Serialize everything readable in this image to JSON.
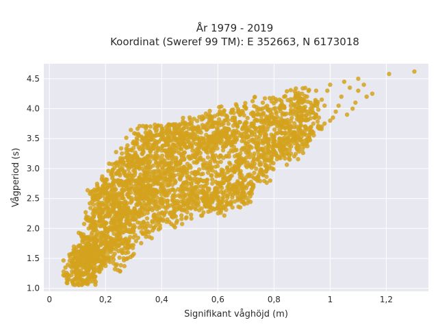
{
  "chart_data": {
    "type": "scatter",
    "title_lines": [
      "År 1979 - 2019",
      "Koordinat (Sweref 99 TM): E 352663, N 6173018"
    ],
    "xlabel": "Signifikant våghöjd (m)",
    "ylabel": "Vågperiod (s)",
    "xlim": [
      -0.02,
      1.35
    ],
    "ylim": [
      0.95,
      4.75
    ],
    "x_ticks": [
      0,
      0.2,
      0.4,
      0.6,
      0.8,
      1.0,
      1.2
    ],
    "x_tick_labels": [
      "0",
      "0,2",
      "0,4",
      "0,6",
      "0,8",
      "1",
      "1,2"
    ],
    "y_ticks": [
      1.0,
      1.5,
      2.0,
      2.5,
      3.0,
      3.5,
      4.0,
      4.5
    ],
    "y_tick_labels": [
      "1.0",
      "1.5",
      "2.0",
      "2.5",
      "3.0",
      "3.5",
      "4.0",
      "4.5"
    ],
    "grid": true,
    "colors": {
      "points": "#d4a21c",
      "plot_bg": "#e8e8f0",
      "grid": "#ffffff"
    },
    "points": [
      [
        0.05,
        1.22
      ],
      [
        0.07,
        1.2
      ],
      [
        0.09,
        1.15
      ],
      [
        0.11,
        1.1
      ],
      [
        0.13,
        1.08
      ],
      [
        0.08,
        1.35
      ],
      [
        0.1,
        1.45
      ],
      [
        0.12,
        1.55
      ],
      [
        0.11,
        1.7
      ],
      [
        0.13,
        1.85
      ],
      [
        0.14,
        2.0
      ],
      [
        0.15,
        2.15
      ],
      [
        0.16,
        2.3
      ],
      [
        0.17,
        2.5
      ],
      [
        0.18,
        2.6
      ],
      [
        0.2,
        2.75
      ],
      [
        0.22,
        2.9
      ],
      [
        0.24,
        3.05
      ],
      [
        0.26,
        3.15
      ],
      [
        0.28,
        3.3
      ],
      [
        0.3,
        3.45
      ],
      [
        0.32,
        3.55
      ],
      [
        0.36,
        3.6
      ],
      [
        0.38,
        3.62
      ],
      [
        0.42,
        3.65
      ],
      [
        0.46,
        3.7
      ],
      [
        0.5,
        3.75
      ],
      [
        0.55,
        3.85
      ],
      [
        0.6,
        3.9
      ],
      [
        0.65,
        3.95
      ],
      [
        0.7,
        4.0
      ],
      [
        0.76,
        4.1
      ],
      [
        0.82,
        4.15
      ],
      [
        0.88,
        4.2
      ],
      [
        0.9,
        4.25
      ],
      [
        0.95,
        4.3
      ],
      [
        1.0,
        4.4
      ],
      [
        1.05,
        4.45
      ],
      [
        1.1,
        4.5
      ],
      [
        1.13,
        4.2
      ],
      [
        1.15,
        4.25
      ],
      [
        1.21,
        4.58
      ],
      [
        1.3,
        4.62
      ],
      [
        1.08,
        4.0
      ],
      [
        1.02,
        3.95
      ],
      [
        0.96,
        3.85
      ],
      [
        0.9,
        3.6
      ],
      [
        0.88,
        3.35
      ],
      [
        0.82,
        3.2
      ],
      [
        0.78,
        3.0
      ],
      [
        0.75,
        2.95
      ],
      [
        0.7,
        2.85
      ],
      [
        0.66,
        2.7
      ],
      [
        0.62,
        2.6
      ],
      [
        0.58,
        2.5
      ],
      [
        0.55,
        2.45
      ],
      [
        0.52,
        2.35
      ],
      [
        0.48,
        2.3
      ],
      [
        0.45,
        2.2
      ],
      [
        0.42,
        2.15
      ],
      [
        0.38,
        2.05
      ],
      [
        0.35,
        1.95
      ],
      [
        0.3,
        1.85
      ],
      [
        0.26,
        1.75
      ],
      [
        0.22,
        1.65
      ],
      [
        0.19,
        1.55
      ],
      [
        0.16,
        1.45
      ],
      [
        0.14,
        1.3
      ],
      [
        0.16,
        1.2
      ],
      [
        0.2,
        1.5
      ],
      [
        0.25,
        1.9
      ],
      [
        0.28,
        2.1
      ],
      [
        0.3,
        2.3
      ],
      [
        0.33,
        2.5
      ],
      [
        0.36,
        2.7
      ],
      [
        0.4,
        2.85
      ],
      [
        0.44,
        3.0
      ],
      [
        0.48,
        3.15
      ],
      [
        0.52,
        3.25
      ],
      [
        0.56,
        3.35
      ],
      [
        0.6,
        3.45
      ],
      [
        0.64,
        3.5
      ],
      [
        0.68,
        3.55
      ],
      [
        0.72,
        3.6
      ],
      [
        0.78,
        3.7
      ],
      [
        0.84,
        3.8
      ],
      [
        0.92,
        3.95
      ],
      [
        0.98,
        4.05
      ],
      [
        0.2,
        2.2
      ],
      [
        0.22,
        2.4
      ],
      [
        0.24,
        2.55
      ],
      [
        0.26,
        2.65
      ],
      [
        0.3,
        2.7
      ],
      [
        0.34,
        2.9
      ],
      [
        0.38,
        3.1
      ],
      [
        0.4,
        3.3
      ],
      [
        0.44,
        3.4
      ],
      [
        0.46,
        3.5
      ],
      [
        0.5,
        3.55
      ],
      [
        0.32,
        2.2
      ],
      [
        0.36,
        2.35
      ],
      [
        0.4,
        2.5
      ],
      [
        0.44,
        2.65
      ],
      [
        0.48,
        2.75
      ],
      [
        0.52,
        2.9
      ],
      [
        0.56,
        3.0
      ],
      [
        0.6,
        3.1
      ],
      [
        0.64,
        3.2
      ],
      [
        0.68,
        3.25
      ],
      [
        0.72,
        3.35
      ],
      [
        0.76,
        3.45
      ],
      [
        0.8,
        3.5
      ],
      [
        0.84,
        3.6
      ],
      [
        0.88,
        3.7
      ],
      [
        0.94,
        3.75
      ],
      [
        1.0,
        3.8
      ],
      [
        0.54,
        2.6
      ],
      [
        0.5,
        2.55
      ],
      [
        0.58,
        2.75
      ],
      [
        0.62,
        2.85
      ],
      [
        0.6,
        2.4
      ],
      [
        0.63,
        2.45
      ],
      [
        0.68,
        2.5
      ],
      [
        0.72,
        2.65
      ],
      [
        0.57,
        2.35
      ],
      [
        0.18,
        1.9
      ],
      [
        0.17,
        2.05
      ],
      [
        0.19,
        2.3
      ],
      [
        0.21,
        2.45
      ],
      [
        0.23,
        2.1
      ],
      [
        0.25,
        2.3
      ],
      [
        0.27,
        2.45
      ],
      [
        0.29,
        2.6
      ],
      [
        0.31,
        2.8
      ],
      [
        0.33,
        3.0
      ],
      [
        0.35,
        3.2
      ],
      [
        0.37,
        3.4
      ],
      [
        0.41,
        3.5
      ],
      [
        0.43,
        3.6
      ],
      [
        0.47,
        3.65
      ],
      [
        0.53,
        3.7
      ],
      [
        0.57,
        3.8
      ],
      [
        0.62,
        3.75
      ],
      [
        0.66,
        3.85
      ],
      [
        0.74,
        3.9
      ],
      [
        0.8,
        4.0
      ],
      [
        0.86,
        4.05
      ],
      [
        0.93,
        4.1
      ],
      [
        0.97,
        4.15
      ],
      [
        1.04,
        4.2
      ],
      [
        1.07,
        4.35
      ],
      [
        0.44,
        2.4
      ],
      [
        0.39,
        2.25
      ],
      [
        0.34,
        2.05
      ],
      [
        0.3,
        1.95
      ],
      [
        0.27,
        1.8
      ],
      [
        0.24,
        1.7
      ],
      [
        0.21,
        1.6
      ],
      [
        0.18,
        1.45
      ],
      [
        0.15,
        1.35
      ],
      [
        0.12,
        1.4
      ],
      [
        0.1,
        1.3
      ],
      [
        0.12,
        1.25
      ],
      [
        0.14,
        1.15
      ],
      [
        0.24,
        1.4
      ],
      [
        0.28,
        1.6
      ],
      [
        0.12,
        1.6
      ],
      [
        0.1,
        1.58
      ],
      [
        0.09,
        1.5
      ],
      [
        0.14,
        1.75
      ],
      [
        0.16,
        1.85
      ],
      [
        0.2,
        2.0
      ],
      [
        0.46,
        2.55
      ],
      [
        0.41,
        2.6
      ],
      [
        0.38,
        2.4
      ],
      [
        0.36,
        2.55
      ],
      [
        0.34,
        2.7
      ],
      [
        0.46,
        2.9
      ],
      [
        0.5,
        3.05
      ],
      [
        0.54,
        3.15
      ],
      [
        0.58,
        3.25
      ],
      [
        0.52,
        2.45
      ],
      [
        0.56,
        2.55
      ],
      [
        0.66,
        2.95
      ],
      [
        0.7,
        3.05
      ],
      [
        0.74,
        3.15
      ],
      [
        0.78,
        3.25
      ],
      [
        0.8,
        3.3
      ],
      [
        0.85,
        3.45
      ],
      [
        0.86,
        3.25
      ],
      [
        0.92,
        3.5
      ],
      [
        1.06,
        3.9
      ],
      [
        0.6,
        3.65
      ],
      [
        0.54,
        3.6
      ],
      [
        0.47,
        3.55
      ],
      [
        0.34,
        3.45
      ],
      [
        0.3,
        3.2
      ],
      [
        0.26,
        3.0
      ],
      [
        0.23,
        2.8
      ],
      [
        0.2,
        2.6
      ],
      [
        0.18,
        2.4
      ],
      [
        0.16,
        2.55
      ],
      [
        0.19,
        2.7
      ],
      [
        0.35,
        3.58
      ],
      [
        0.44,
        3.2
      ],
      [
        0.39,
        2.95
      ],
      [
        0.43,
        2.8
      ],
      [
        0.49,
        2.65
      ],
      [
        0.61,
        2.9
      ],
      [
        0.65,
        3.0
      ],
      [
        0.69,
        3.15
      ],
      [
        0.73,
        3.25
      ],
      [
        0.77,
        3.35
      ],
      [
        0.81,
        3.4
      ],
      [
        0.87,
        3.55
      ],
      [
        0.91,
        3.7
      ],
      [
        0.95,
        3.9
      ],
      [
        0.97,
        3.7
      ],
      [
        1.12,
        4.4
      ],
      [
        1.1,
        4.3
      ],
      [
        0.99,
        4.3
      ],
      [
        0.9,
        4.1
      ],
      [
        0.83,
        3.9
      ],
      [
        0.79,
        3.85
      ],
      [
        0.72,
        3.75
      ],
      [
        0.67,
        3.7
      ],
      [
        0.63,
        3.6
      ],
      [
        0.59,
        3.55
      ],
      [
        0.49,
        3.45
      ],
      [
        0.45,
        3.35
      ],
      [
        0.42,
        3.25
      ],
      [
        0.37,
        3.05
      ],
      [
        0.32,
        2.85
      ],
      [
        0.29,
        2.75
      ],
      [
        0.26,
        2.55
      ],
      [
        0.23,
        2.35
      ],
      [
        0.21,
        2.2
      ],
      [
        0.17,
        1.65
      ],
      [
        0.22,
        1.8
      ],
      [
        0.25,
        2.05
      ],
      [
        0.28,
        2.25
      ],
      [
        0.31,
        2.4
      ],
      [
        0.33,
        2.35
      ],
      [
        0.37,
        2.5
      ],
      [
        0.4,
        2.7
      ],
      [
        0.42,
        2.95
      ],
      [
        0.45,
        3.1
      ],
      [
        0.51,
        3.3
      ],
      [
        0.53,
        3.4
      ],
      [
        0.57,
        3.45
      ],
      [
        0.61,
        3.5
      ],
      [
        0.65,
        3.4
      ],
      [
        0.71,
        3.45
      ],
      [
        0.75,
        3.55
      ],
      [
        0.76,
        3.7
      ],
      [
        0.82,
        3.65
      ],
      [
        0.89,
        3.85
      ],
      [
        0.14,
        1.6
      ],
      [
        0.15,
        1.7
      ],
      [
        0.13,
        1.5
      ],
      [
        0.11,
        1.45
      ],
      [
        0.12,
        1.35
      ],
      [
        0.15,
        1.55
      ],
      [
        0.17,
        1.8
      ],
      [
        0.19,
        2.1
      ],
      [
        0.22,
        2.55
      ],
      [
        0.25,
        2.75
      ],
      [
        0.27,
        2.9
      ],
      [
        0.29,
        3.05
      ],
      [
        0.31,
        3.1
      ],
      [
        0.33,
        3.25
      ],
      [
        0.36,
        3.35
      ],
      [
        0.39,
        3.45
      ],
      [
        0.48,
        3.5
      ],
      [
        0.55,
        3.5
      ],
      [
        0.64,
        3.65
      ],
      [
        0.7,
        3.7
      ],
      [
        0.74,
        3.8
      ],
      [
        0.8,
        3.85
      ],
      [
        0.87,
        3.95
      ],
      [
        0.93,
        4.0
      ],
      [
        1.03,
        4.05
      ],
      [
        0.42,
        2.35
      ],
      [
        0.47,
        2.45
      ],
      [
        0.53,
        2.5
      ],
      [
        0.59,
        2.65
      ],
      [
        0.64,
        2.75
      ],
      [
        0.67,
        2.6
      ],
      [
        0.55,
        2.7
      ],
      [
        0.51,
        2.8
      ],
      [
        0.47,
        2.95
      ],
      [
        0.41,
        3.05
      ],
      [
        0.37,
        2.8
      ],
      [
        0.35,
        2.65
      ],
      [
        0.32,
        2.6
      ],
      [
        0.28,
        2.35
      ],
      [
        0.26,
        2.2
      ],
      [
        0.23,
        2.0
      ],
      [
        0.21,
        1.85
      ],
      [
        0.19,
        1.75
      ],
      [
        0.18,
        1.6
      ],
      [
        0.17,
        1.5
      ],
      [
        0.16,
        1.65
      ],
      [
        0.62,
        2.35
      ],
      [
        0.66,
        2.45
      ],
      [
        0.69,
        2.55
      ],
      [
        0.71,
        2.75
      ],
      [
        0.76,
        2.9
      ],
      [
        0.79,
        3.1
      ],
      [
        0.83,
        3.3
      ],
      [
        0.85,
        3.5
      ],
      [
        0.9,
        3.4
      ],
      [
        0.94,
        3.6
      ],
      [
        0.98,
        3.75
      ],
      [
        1.01,
        3.85
      ],
      [
        1.09,
        4.1
      ]
    ]
  }
}
